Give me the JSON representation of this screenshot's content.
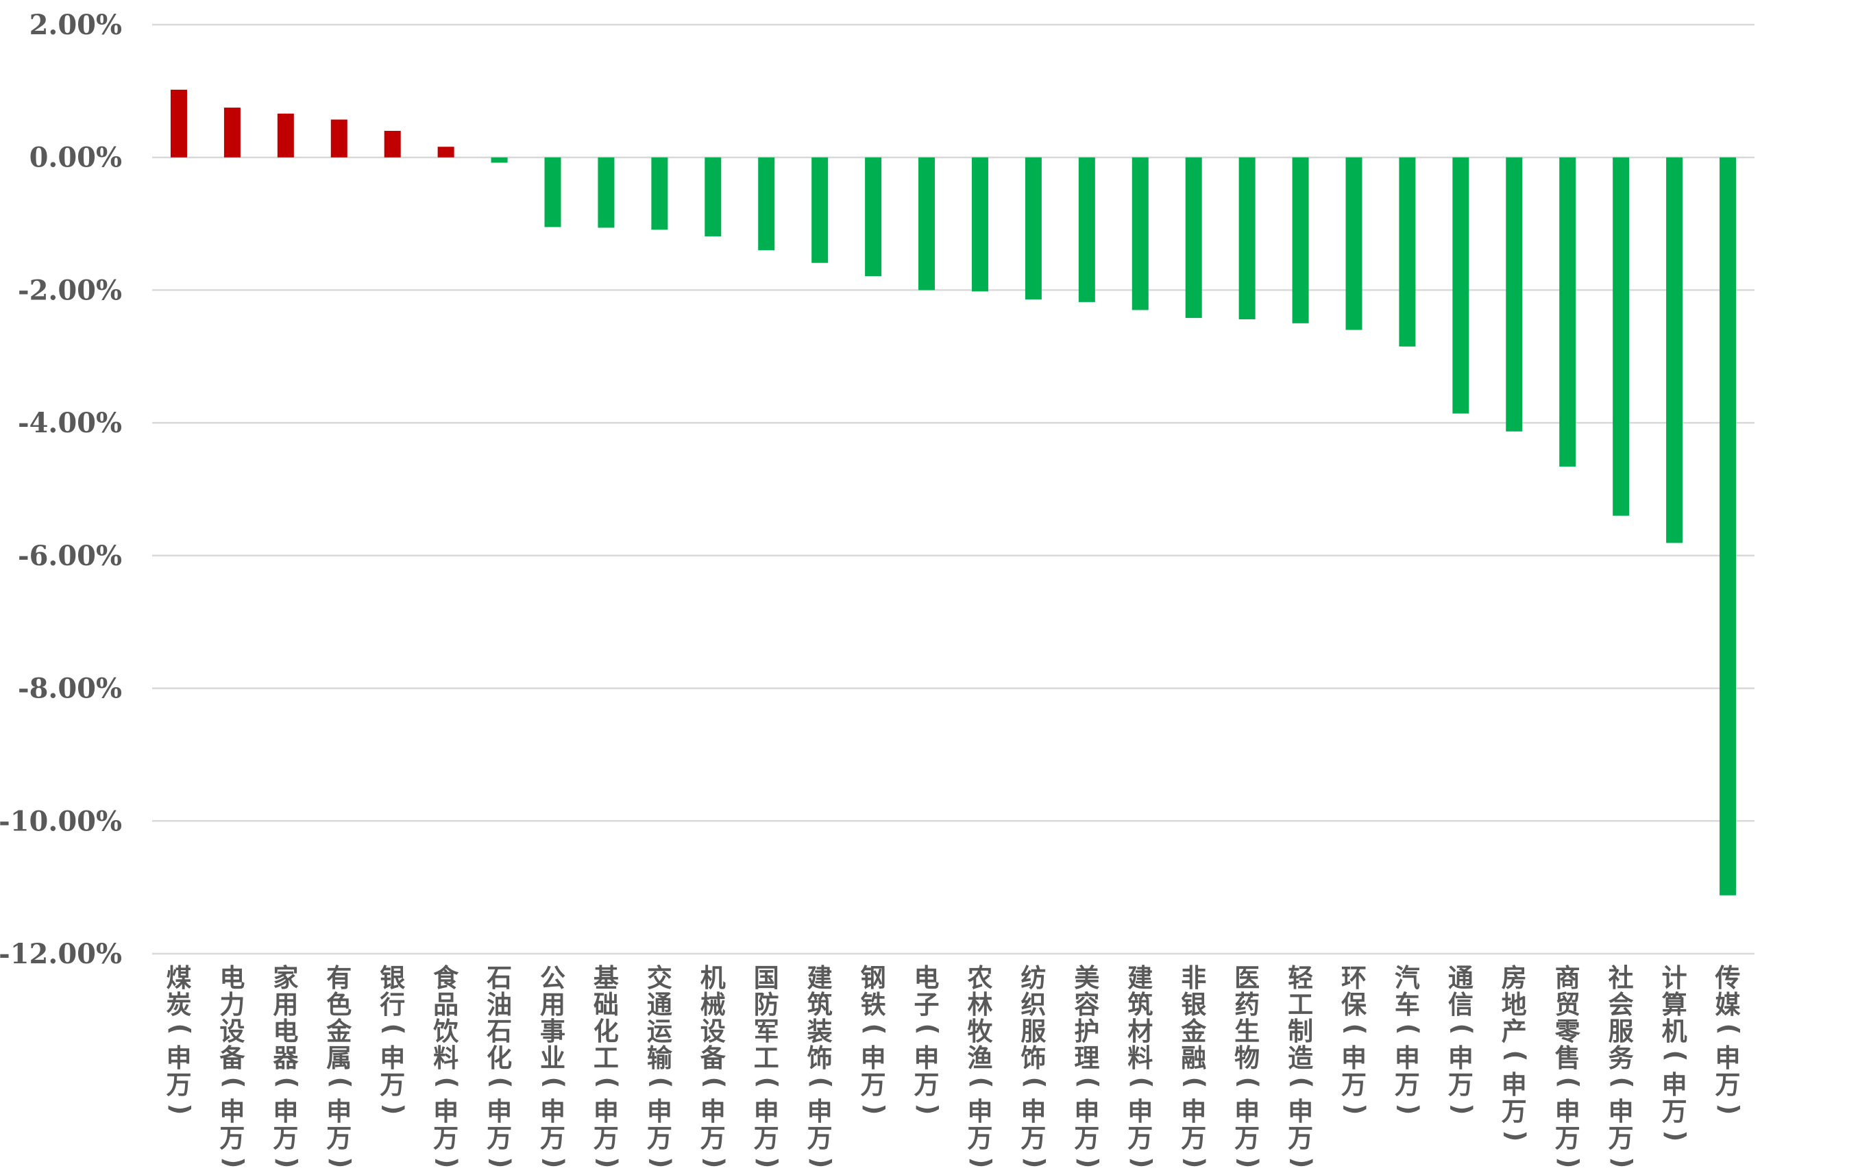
{
  "chart_data": {
    "type": "bar",
    "title": "",
    "xlabel": "",
    "ylabel": "",
    "ylim": [
      -12,
      2
    ],
    "y_ticks": [
      2,
      0,
      -2,
      -4,
      -6,
      -8,
      -10,
      -12
    ],
    "y_tick_format": "percent_2dp",
    "grid": true,
    "legend": "none",
    "colors": {
      "positive": "#c00000",
      "negative": "#00b050",
      "grid": "#d9d9d9",
      "text": "#595959"
    },
    "categories": [
      "煤炭(申万)",
      "电力设备(申万)",
      "家用电器(申万)",
      "有色金属(申万)",
      "银行(申万)",
      "食品饮料(申万)",
      "石油石化(申万)",
      "公用事业(申万)",
      "基础化工(申万)",
      "交通运输(申万)",
      "机械设备(申万)",
      "国防军工(申万)",
      "建筑装饰(申万)",
      "钢铁(申万)",
      "电子(申万)",
      "农林牧渔(申万)",
      "纺织服饰(申万)",
      "美容护理(申万)",
      "建筑材料(申万)",
      "非银金融(申万)",
      "医药生物(申万)",
      "轻工制造(申万)",
      "环保(申万)",
      "汽车(申万)",
      "通信(申万)",
      "房地产(申万)",
      "商贸零售(申万)",
      "社会服务(申万)",
      "计算机(申万)",
      "传媒(申万)"
    ],
    "values": [
      1.02,
      0.75,
      0.66,
      0.57,
      0.4,
      0.16,
      -0.08,
      -1.05,
      -1.06,
      -1.09,
      -1.19,
      -1.4,
      -1.59,
      -1.79,
      -2.0,
      -2.02,
      -2.14,
      -2.18,
      -2.3,
      -2.42,
      -2.44,
      -2.5,
      -2.6,
      -2.85,
      -3.86,
      -4.13,
      -4.66,
      -5.4,
      -5.81,
      -11.12
    ]
  }
}
